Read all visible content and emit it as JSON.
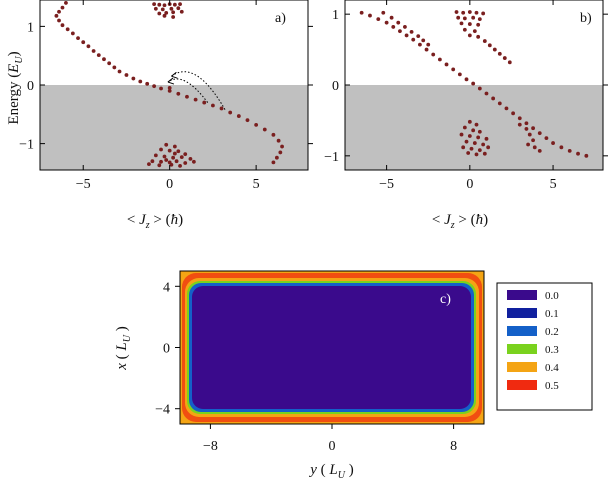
{
  "chart_data": [
    {
      "id": "a",
      "type": "scatter",
      "panel_label": "a)",
      "xlabel": "< J_z > (ħ)",
      "ylabel": "Energy (E_U)",
      "xlim": [
        -7.5,
        8
      ],
      "ylim": [
        -1.45,
        1.45
      ],
      "xticks": [
        -5,
        0,
        5
      ],
      "yticks": [
        -1,
        0,
        1
      ],
      "shaded_region": {
        "y_from": -1.45,
        "y_to": 0,
        "color": "#c0c0c0"
      },
      "point_color": "#7a1f1f",
      "series": [
        {
          "values": [
            [
              -6.0,
              1.4
            ],
            [
              -6.2,
              1.32
            ],
            [
              -6.4,
              1.25
            ],
            [
              -6.55,
              1.18
            ],
            [
              -6.4,
              1.1
            ],
            [
              -6.2,
              1.02
            ],
            [
              -5.9,
              0.95
            ],
            [
              -5.6,
              0.88
            ],
            [
              -5.3,
              0.8
            ],
            [
              -5.0,
              0.73
            ],
            [
              -4.7,
              0.66
            ],
            [
              -4.4,
              0.58
            ],
            [
              -4.1,
              0.51
            ],
            [
              -3.8,
              0.44
            ],
            [
              -3.5,
              0.37
            ],
            [
              -3.2,
              0.3
            ],
            [
              -2.9,
              0.23
            ],
            [
              -2.5,
              0.17
            ],
            [
              -2.1,
              0.11
            ],
            [
              -1.7,
              0.06
            ],
            [
              -1.3,
              0.02
            ],
            [
              -0.9,
              -0.02
            ],
            [
              -0.5,
              -0.06
            ],
            [
              0.0,
              -0.1
            ],
            [
              0.5,
              -0.15
            ],
            [
              1.0,
              -0.2
            ],
            [
              1.5,
              -0.25
            ],
            [
              2.0,
              -0.3
            ],
            [
              2.5,
              -0.35
            ],
            [
              3.0,
              -0.4
            ],
            [
              3.5,
              -0.47
            ],
            [
              4.0,
              -0.53
            ],
            [
              4.5,
              -0.6
            ],
            [
              5.0,
              -0.68
            ],
            [
              5.5,
              -0.76
            ],
            [
              6.0,
              -0.85
            ],
            [
              6.3,
              -0.95
            ],
            [
              6.5,
              -1.05
            ],
            [
              6.4,
              -1.15
            ],
            [
              6.2,
              -1.24
            ],
            [
              6.0,
              -1.32
            ],
            [
              -0.9,
              1.38
            ],
            [
              -0.6,
              1.37
            ],
            [
              -0.3,
              1.36
            ],
            [
              0.0,
              1.38
            ],
            [
              0.3,
              1.37
            ],
            [
              0.6,
              1.38
            ],
            [
              -0.8,
              1.3
            ],
            [
              -0.4,
              1.29
            ],
            [
              0.1,
              1.3
            ],
            [
              0.5,
              1.31
            ],
            [
              -0.6,
              1.22
            ],
            [
              -0.2,
              1.23
            ],
            [
              0.2,
              1.24
            ],
            [
              0.7,
              1.25
            ],
            [
              -0.3,
              1.18
            ],
            [
              0.2,
              1.16
            ],
            [
              -0.2,
              -1.02
            ],
            [
              0.3,
              -1.05
            ],
            [
              -0.5,
              -1.1
            ],
            [
              0.0,
              -1.12
            ],
            [
              0.5,
              -1.13
            ],
            [
              0.9,
              -1.18
            ],
            [
              -0.8,
              -1.2
            ],
            [
              -0.3,
              -1.22
            ],
            [
              0.2,
              -1.24
            ],
            [
              0.7,
              -1.23
            ],
            [
              1.2,
              -1.26
            ],
            [
              -1.0,
              -1.3
            ],
            [
              -0.5,
              -1.31
            ],
            [
              0.0,
              -1.32
            ],
            [
              0.4,
              -1.3
            ],
            [
              0.9,
              -1.33
            ],
            [
              1.4,
              -1.31
            ],
            [
              -1.2,
              -1.35
            ],
            [
              -0.6,
              -1.37
            ],
            [
              0.1,
              -1.36
            ],
            [
              0.6,
              -1.38
            ],
            [
              -0.2,
              -1.28
            ],
            [
              0.3,
              -1.17
            ],
            [
              0.0,
              -0.05
            ]
          ]
        }
      ],
      "annotations": [
        {
          "type": "dotted-arrow",
          "from": [
            3.2,
            -0.42
          ],
          "via": [
            1.5,
            0.45
          ],
          "to": [
            0.1,
            0.15
          ]
        },
        {
          "type": "dotted-arrow",
          "from": [
            2.2,
            -0.3
          ],
          "via": [
            0.8,
            0.25
          ],
          "to": [
            -0.1,
            0.05
          ]
        }
      ]
    },
    {
      "id": "b",
      "type": "scatter",
      "panel_label": "b)",
      "xlabel": "< J_z > (ħ)",
      "ylabel": "",
      "xlim": [
        -7.5,
        8
      ],
      "ylim": [
        -1.2,
        1.2
      ],
      "xticks": [
        -5,
        0,
        5
      ],
      "yticks": [
        -1,
        0,
        1
      ],
      "shaded_region": {
        "y_from": -1.2,
        "y_to": 0,
        "color": "#c0c0c0"
      },
      "point_color": "#7a1f1f",
      "series": [
        {
          "values": [
            [
              -6.5,
              1.02
            ],
            [
              -6.0,
              0.98
            ],
            [
              -5.5,
              0.93
            ],
            [
              -5.0,
              0.88
            ],
            [
              -4.6,
              0.82
            ],
            [
              -4.2,
              0.76
            ],
            [
              -3.8,
              0.7
            ],
            [
              -3.4,
              0.64
            ],
            [
              -3.0,
              0.57
            ],
            [
              -2.6,
              0.5
            ],
            [
              -2.2,
              0.43
            ],
            [
              -1.8,
              0.36
            ],
            [
              -1.4,
              0.29
            ],
            [
              -1.0,
              0.22
            ],
            [
              -0.6,
              0.15
            ],
            [
              -0.2,
              0.08
            ],
            [
              0.2,
              0.02
            ],
            [
              0.6,
              -0.05
            ],
            [
              1.0,
              -0.12
            ],
            [
              1.4,
              -0.19
            ],
            [
              1.8,
              -0.26
            ],
            [
              2.2,
              -0.33
            ],
            [
              2.6,
              -0.4
            ],
            [
              3.0,
              -0.47
            ],
            [
              3.4,
              -0.54
            ],
            [
              3.8,
              -0.61
            ],
            [
              4.2,
              -0.68
            ],
            [
              4.6,
              -0.75
            ],
            [
              5.0,
              -0.82
            ],
            [
              5.5,
              -0.88
            ],
            [
              6.0,
              -0.93
            ],
            [
              6.5,
              -0.97
            ],
            [
              7.0,
              -1.0
            ],
            [
              -5.2,
              1.02
            ],
            [
              -4.7,
              0.95
            ],
            [
              -4.3,
              0.88
            ],
            [
              -3.9,
              0.82
            ],
            [
              -3.5,
              0.75
            ],
            [
              -3.1,
              0.69
            ],
            [
              -2.8,
              0.63
            ],
            [
              -2.5,
              0.57
            ],
            [
              -0.8,
              1.03
            ],
            [
              -0.4,
              1.02
            ],
            [
              0.0,
              1.03
            ],
            [
              0.4,
              1.02
            ],
            [
              0.8,
              1.01
            ],
            [
              -0.7,
              0.95
            ],
            [
              -0.3,
              0.94
            ],
            [
              0.2,
              0.95
            ],
            [
              0.6,
              0.93
            ],
            [
              -0.5,
              0.87
            ],
            [
              0.0,
              0.86
            ],
            [
              0.5,
              0.85
            ],
            [
              -0.3,
              0.78
            ],
            [
              0.3,
              0.76
            ],
            [
              0.0,
              0.7
            ],
            [
              0.5,
              0.68
            ],
            [
              0.9,
              0.62
            ],
            [
              1.2,
              0.56
            ],
            [
              1.5,
              0.5
            ],
            [
              1.8,
              0.44
            ],
            [
              2.1,
              0.38
            ],
            [
              2.4,
              0.32
            ],
            [
              0.0,
              -0.52
            ],
            [
              0.4,
              -0.56
            ],
            [
              -0.3,
              -0.6
            ],
            [
              0.2,
              -0.64
            ],
            [
              0.6,
              -0.66
            ],
            [
              -0.5,
              -0.7
            ],
            [
              0.0,
              -0.72
            ],
            [
              0.5,
              -0.74
            ],
            [
              1.0,
              -0.76
            ],
            [
              -0.2,
              -0.8
            ],
            [
              0.3,
              -0.82
            ],
            [
              0.8,
              -0.84
            ],
            [
              -0.4,
              -0.88
            ],
            [
              0.1,
              -0.9
            ],
            [
              0.6,
              -0.92
            ],
            [
              1.1,
              -0.88
            ],
            [
              -0.1,
              -0.96
            ],
            [
              0.4,
              -0.98
            ],
            [
              0.9,
              -0.97
            ],
            [
              3.0,
              -0.56
            ],
            [
              3.4,
              -0.62
            ],
            [
              3.6,
              -0.7
            ],
            [
              3.8,
              -0.78
            ],
            [
              3.5,
              -0.84
            ],
            [
              3.9,
              -0.88
            ],
            [
              4.2,
              -0.93
            ]
          ]
        }
      ]
    },
    {
      "id": "c",
      "type": "heatmap",
      "panel_label": "c)",
      "xlabel": "y ( L_U )",
      "ylabel": "x ( L_U )",
      "xlim": [
        -10,
        10
      ],
      "ylim": [
        -5,
        5
      ],
      "xticks": [
        -8,
        0,
        8
      ],
      "yticks": [
        -4,
        0,
        4
      ],
      "colorbar": {
        "levels": [
          "0.0",
          "0.1",
          "0.2",
          "0.3",
          "0.4",
          "0.5"
        ],
        "colors": [
          "#3a0a8c",
          "#10209e",
          "#1460c8",
          "#7ad21e",
          "#f4a414",
          "#f02a10"
        ]
      },
      "field": {
        "description_values": {
          "interior": 0.0,
          "edge": 0.5
        }
      }
    }
  ]
}
